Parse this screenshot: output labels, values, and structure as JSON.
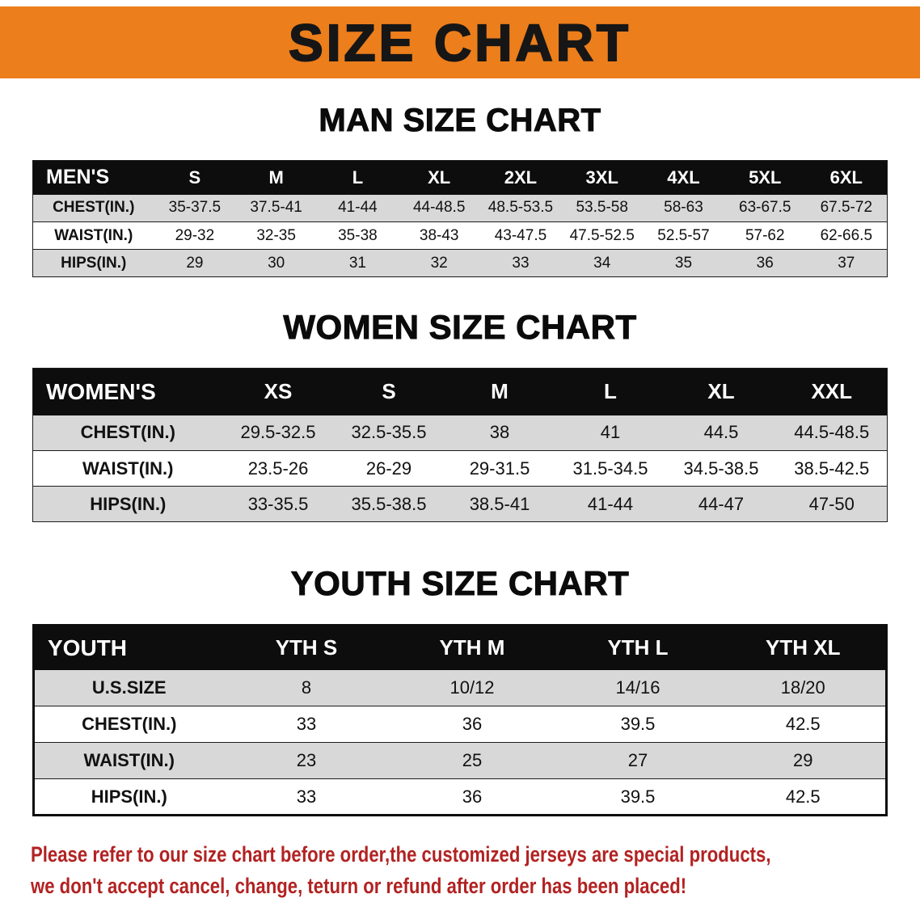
{
  "banner": {
    "title": "SIZE CHART"
  },
  "colors": {
    "banner_bg": "#EC7E1C",
    "banner_text": "#161616",
    "table_header_bg": "#0D0D0D",
    "table_header_text": "#FFFFFF",
    "stripe_row_bg": "#D8D8D8",
    "row_line": "#1C1C1C",
    "disclaimer_text": "#B22222"
  },
  "chart_data": [
    {
      "type": "table",
      "title": "MAN SIZE CHART",
      "columns": [
        "MEN'S",
        "S",
        "M",
        "L",
        "XL",
        "2XL",
        "3XL",
        "4XL",
        "5XL",
        "6XL"
      ],
      "rows": [
        [
          "CHEST(IN.)",
          "35-37.5",
          "37.5-41",
          "41-44",
          "44-48.5",
          "48.5-53.5",
          "53.5-58",
          "58-63",
          "63-67.5",
          "67.5-72"
        ],
        [
          "WAIST(IN.)",
          "29-32",
          "32-35",
          "35-38",
          "38-43",
          "43-47.5",
          "47.5-52.5",
          "52.5-57",
          "57-62",
          "62-66.5"
        ],
        [
          "HIPS(IN.)",
          "29",
          "30",
          "31",
          "32",
          "33",
          "34",
          "35",
          "36",
          "37"
        ]
      ]
    },
    {
      "type": "table",
      "title": "WOMEN SIZE CHART",
      "columns": [
        "WOMEN'S",
        "XS",
        "S",
        "M",
        "L",
        "XL",
        "XXL"
      ],
      "rows": [
        [
          "CHEST(IN.)",
          "29.5-32.5",
          "32.5-35.5",
          "38",
          "41",
          "44.5",
          "44.5-48.5"
        ],
        [
          "WAIST(IN.)",
          "23.5-26",
          "26-29",
          "29-31.5",
          "31.5-34.5",
          "34.5-38.5",
          "38.5-42.5"
        ],
        [
          "HIPS(IN.)",
          "33-35.5",
          "35.5-38.5",
          "38.5-41",
          "41-44",
          "44-47",
          "47-50"
        ]
      ]
    },
    {
      "type": "table",
      "title": "YOUTH SIZE CHART",
      "columns": [
        "YOUTH",
        "YTH S",
        "YTH M",
        "YTH L",
        "YTH XL"
      ],
      "rows": [
        [
          "U.S.SIZE",
          "8",
          "10/12",
          "14/16",
          "18/20"
        ],
        [
          "CHEST(IN.)",
          "33",
          "36",
          "39.5",
          "42.5"
        ],
        [
          "WAIST(IN.)",
          "23",
          "25",
          "27",
          "29"
        ],
        [
          "HIPS(IN.)",
          "33",
          "36",
          "39.5",
          "42.5"
        ]
      ]
    }
  ],
  "disclaimer": {
    "line1": "Please refer to our size chart before order,the customized jerseys are special products,",
    "line2": "we don't accept cancel, change, teturn or refund after order has been placed!"
  }
}
